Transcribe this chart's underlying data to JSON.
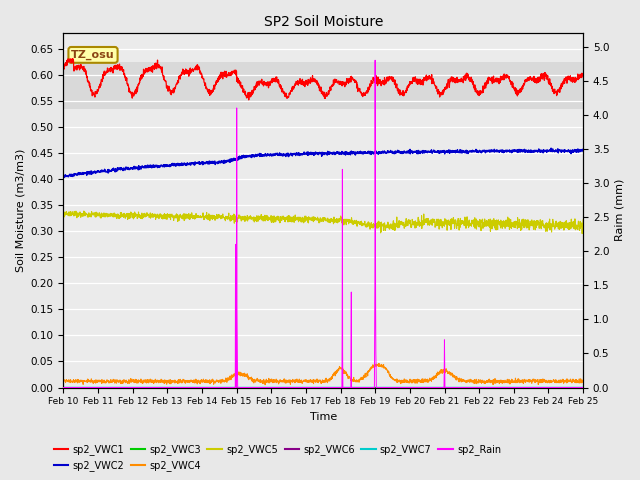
{
  "title": "SP2 Soil Moisture",
  "xlabel": "Time",
  "ylabel_left": "Soil Moisture (m3/m3)",
  "ylabel_right": "Raim (mm)",
  "xlim": [
    0,
    15
  ],
  "ylim_left": [
    0.0,
    0.68
  ],
  "ylim_right": [
    0.0,
    5.2
  ],
  "yticks_left": [
    0.0,
    0.05,
    0.1,
    0.15,
    0.2,
    0.25,
    0.3,
    0.35,
    0.4,
    0.45,
    0.5,
    0.55,
    0.6,
    0.65
  ],
  "yticks_right": [
    0.0,
    0.5,
    1.0,
    1.5,
    2.0,
    2.5,
    3.0,
    3.5,
    4.0,
    4.5,
    5.0
  ],
  "xtick_labels": [
    "Feb 10",
    "Feb 11",
    "Feb 12",
    "Feb 13",
    "Feb 14",
    "Feb 15",
    "Feb 16",
    "Feb 17",
    "Feb 18",
    "Feb 19",
    "Feb 20",
    "Feb 21",
    "Feb 22",
    "Feb 23",
    "Feb 24",
    "Feb 25"
  ],
  "annotation_text": "TZ_osu",
  "annotation_color": "#8B4513",
  "annotation_bg": "#FFFFAA",
  "bg_color": "#E8E8E8",
  "plot_bg": "#EBEBEB",
  "shaded_band": [
    0.535,
    0.625
  ],
  "colors": {
    "sp2_VWC1": "#FF0000",
    "sp2_VWC2": "#0000CC",
    "sp2_VWC3": "#00CC00",
    "sp2_VWC4": "#FF8C00",
    "sp2_VWC5": "#CCCC00",
    "sp2_VWC6": "#880088",
    "sp2_VWC7": "#00CCCC",
    "sp2_Rain": "#FF00FF"
  }
}
